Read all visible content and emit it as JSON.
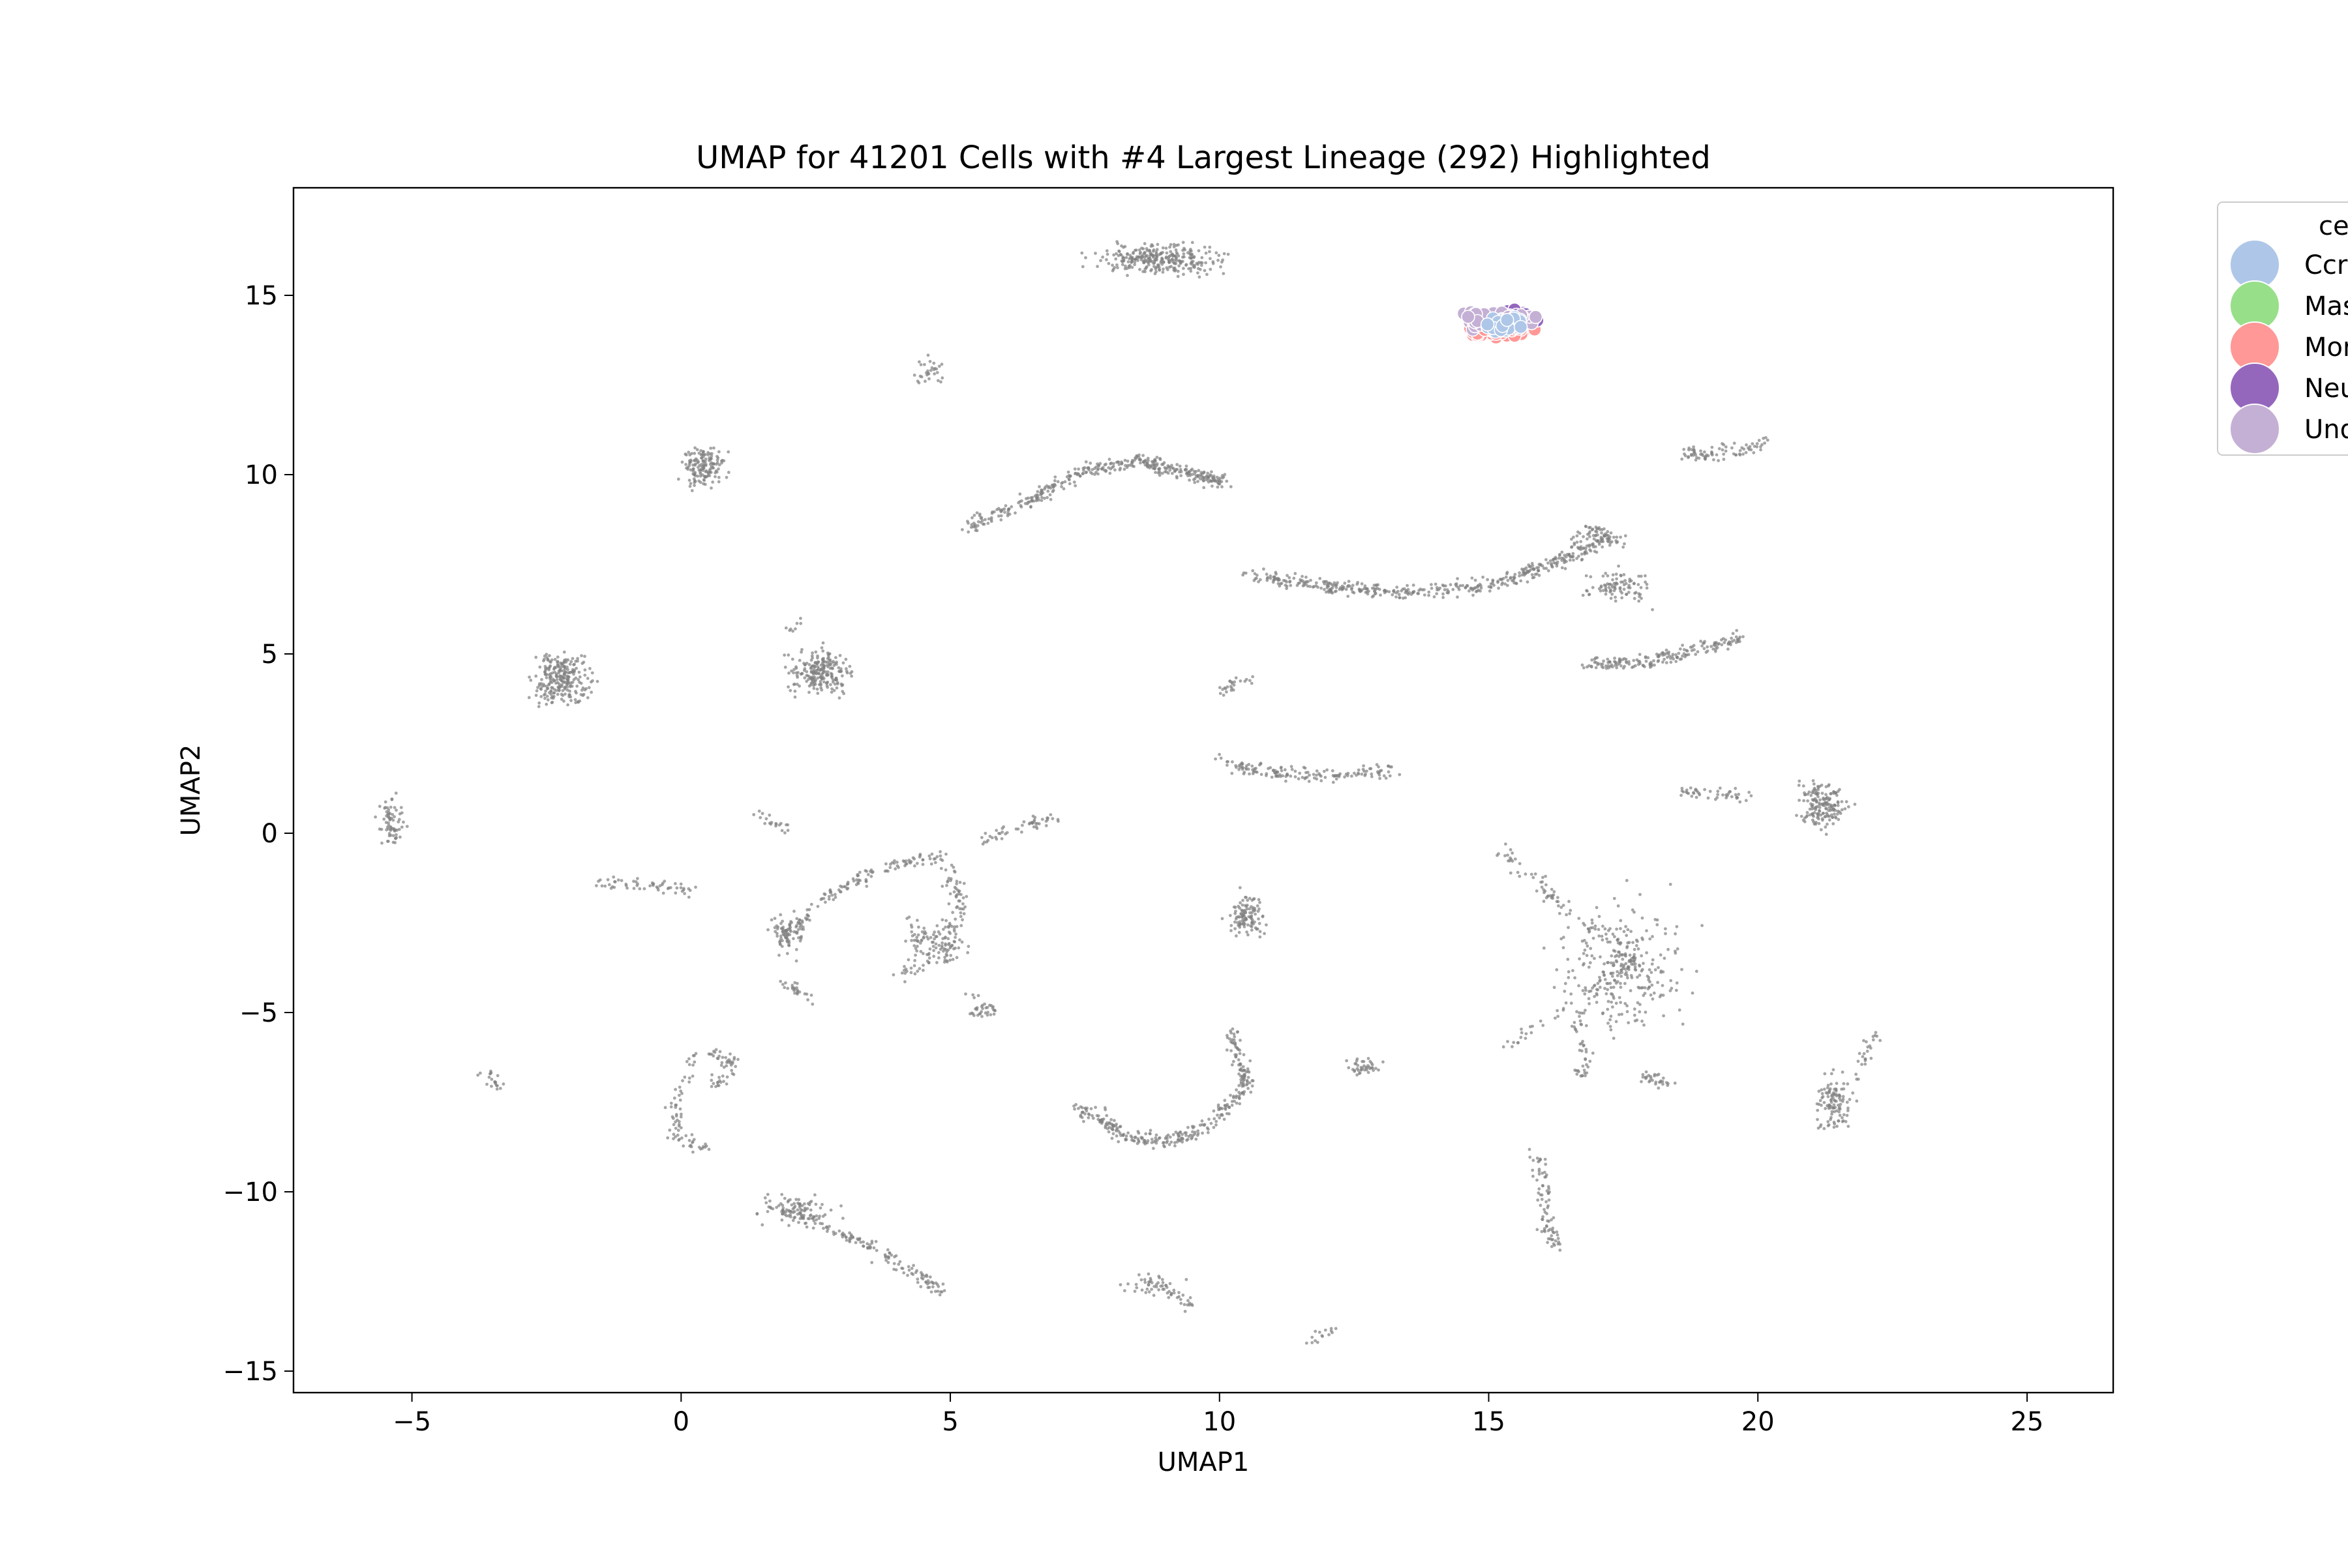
{
  "chart_data": {
    "type": "scatter",
    "title": "UMAP for 41201 Cells with #4 Largest Lineage (292) Highlighted",
    "xlabel": "UMAP1",
    "ylabel": "UMAP2",
    "xlim": [
      -7.2,
      26.6
    ],
    "ylim": [
      -15.6,
      18.0
    ],
    "xticks": [
      -5,
      0,
      5,
      10,
      15,
      20,
      25
    ],
    "yticks": [
      -15,
      -10,
      -5,
      0,
      5,
      10,
      15
    ],
    "xtick_labels": [
      "−5",
      "0",
      "5",
      "10",
      "15",
      "20",
      "25"
    ],
    "ytick_labels": [
      "−15",
      "−10",
      "−5",
      "0",
      "5",
      "10",
      "15"
    ],
    "grid": false,
    "legend": {
      "placement": "outside-top-right",
      "title": "ce",
      "entries": [
        {
          "label": "Ccr",
          "color": "#aec7e8"
        },
        {
          "label": "Mas",
          "color": "#98df8a"
        },
        {
          "label": "Mor",
          "color": "#ff9896"
        },
        {
          "label": "Neu",
          "color": "#9467bd"
        },
        {
          "label": "Und",
          "color": "#c5b0d5"
        }
      ]
    },
    "background_color": "#808080",
    "background_clusters": [
      {
        "shape": "blob",
        "cx": 8.9,
        "cy": 16.0,
        "rx": 1.0,
        "ry": 0.35,
        "n": 300
      },
      {
        "shape": "blob",
        "cx": 0.4,
        "cy": 10.2,
        "rx": 0.35,
        "ry": 0.5,
        "n": 150
      },
      {
        "shape": "blob",
        "cx": -2.2,
        "cy": 4.3,
        "rx": 0.45,
        "ry": 0.7,
        "n": 250
      },
      {
        "shape": "blob",
        "cx": 2.6,
        "cy": 4.5,
        "rx": 0.5,
        "ry": 0.5,
        "n": 220
      },
      {
        "shape": "blob",
        "cx": -5.4,
        "cy": 0.3,
        "rx": 0.2,
        "ry": 0.6,
        "n": 70
      },
      {
        "shape": "blob",
        "cx": 10.5,
        "cy": -2.3,
        "rx": 0.3,
        "ry": 0.5,
        "n": 110
      },
      {
        "shape": "blob",
        "cx": 21.2,
        "cy": 0.8,
        "rx": 0.4,
        "ry": 0.6,
        "n": 170
      },
      {
        "shape": "blob",
        "cx": 21.4,
        "cy": -7.5,
        "rx": 0.3,
        "ry": 0.7,
        "n": 110
      },
      {
        "shape": "blob",
        "cx": 12.7,
        "cy": -6.5,
        "rx": 0.3,
        "ry": 0.2,
        "n": 40
      },
      {
        "shape": "blob",
        "cx": 4.6,
        "cy": 12.9,
        "rx": 0.25,
        "ry": 0.35,
        "n": 30
      },
      {
        "shape": "blob",
        "cx": 17.4,
        "cy": 6.9,
        "rx": 0.5,
        "ry": 0.4,
        "n": 90
      },
      {
        "shape": "blob",
        "cx": 8.7,
        "cy": -12.6,
        "rx": 0.5,
        "ry": 0.25,
        "n": 40
      },
      {
        "shape": "blob",
        "cx": 2.1,
        "cy": -10.5,
        "rx": 0.55,
        "ry": 0.35,
        "n": 90
      },
      {
        "shape": "blob",
        "cx": 17.5,
        "cy": -3.7,
        "rx": 1.0,
        "ry": 1.6,
        "n": 260
      },
      {
        "shape": "blob",
        "cx": 4.7,
        "cy": -3.0,
        "rx": 0.5,
        "ry": 0.6,
        "n": 100
      },
      {
        "shape": "blob",
        "cx": 2.0,
        "cy": -2.8,
        "rx": 0.3,
        "ry": 0.5,
        "n": 60
      },
      {
        "shape": "path",
        "pts": [
          [
            5.3,
            8.5
          ],
          [
            6.5,
            9.3
          ],
          [
            7.5,
            10.1
          ],
          [
            8.5,
            10.4
          ],
          [
            9.5,
            10.0
          ],
          [
            10.1,
            9.8
          ]
        ],
        "n": 380
      },
      {
        "shape": "path",
        "pts": [
          [
            10.5,
            7.2
          ],
          [
            12.0,
            6.9
          ],
          [
            13.5,
            6.7
          ],
          [
            15.0,
            6.9
          ],
          [
            16.3,
            7.6
          ],
          [
            17.3,
            8.3
          ]
        ],
        "n": 450
      },
      {
        "shape": "path",
        "pts": [
          [
            15.6,
            14.2
          ],
          [
            17.5,
            14.5
          ],
          [
            18.5,
            10.5
          ],
          [
            20.1,
            10.8
          ]
        ],
        "n": 0
      },
      {
        "shape": "path",
        "pts": [
          [
            18.6,
            10.55
          ],
          [
            19.3,
            10.6
          ],
          [
            20.1,
            10.85
          ]
        ],
        "n": 80
      },
      {
        "shape": "path",
        "pts": [
          [
            16.8,
            4.7
          ],
          [
            18.0,
            4.8
          ],
          [
            19.0,
            5.2
          ],
          [
            19.7,
            5.4
          ]
        ],
        "n": 180
      },
      {
        "shape": "path",
        "pts": [
          [
            10.0,
            2.0
          ],
          [
            11.0,
            1.7
          ],
          [
            12.2,
            1.6
          ],
          [
            13.2,
            1.8
          ]
        ],
        "n": 150
      },
      {
        "shape": "path",
        "pts": [
          [
            10.0,
            4.0
          ],
          [
            10.6,
            4.3
          ]
        ],
        "n": 25
      },
      {
        "shape": "path",
        "pts": [
          [
            18.5,
            1.1
          ],
          [
            19.3,
            1.1
          ],
          [
            19.9,
            1.0
          ]
        ],
        "n": 45
      },
      {
        "shape": "path",
        "pts": [
          [
            1.4,
            0.5
          ],
          [
            1.9,
            0.1
          ]
        ],
        "n": 20
      },
      {
        "shape": "path",
        "pts": [
          [
            5.5,
            -0.2
          ],
          [
            6.4,
            0.2
          ],
          [
            7.0,
            0.5
          ]
        ],
        "n": 50
      },
      {
        "shape": "path",
        "pts": [
          [
            -1.5,
            -1.4
          ],
          [
            -0.6,
            -1.4
          ],
          [
            0.2,
            -1.6
          ]
        ],
        "n": 55
      },
      {
        "shape": "path",
        "pts": [
          [
            1.8,
            -3.0
          ],
          [
            2.7,
            -1.8
          ],
          [
            3.7,
            -1.0
          ],
          [
            4.9,
            -0.6
          ]
        ],
        "n": 140
      },
      {
        "shape": "path",
        "pts": [
          [
            4.9,
            -0.6
          ],
          [
            5.2,
            -2.0
          ],
          [
            4.9,
            -3.5
          ],
          [
            3.9,
            -4.0
          ]
        ],
        "n": 90
      },
      {
        "shape": "path",
        "pts": [
          [
            1.9,
            -4.2
          ],
          [
            2.4,
            -4.6
          ]
        ],
        "n": 25
      },
      {
        "shape": "path",
        "pts": [
          [
            5.4,
            -4.4
          ],
          [
            5.8,
            -4.9
          ],
          [
            5.4,
            -5.0
          ]
        ],
        "n": 35
      },
      {
        "shape": "path",
        "pts": [
          [
            -3.7,
            -6.6
          ],
          [
            -3.3,
            -7.1
          ]
        ],
        "n": 20
      },
      {
        "shape": "path",
        "pts": [
          [
            0.6,
            -7.0
          ],
          [
            1.0,
            -6.5
          ],
          [
            0.6,
            -6.1
          ]
        ],
        "n": 50
      },
      {
        "shape": "path",
        "pts": [
          [
            0.3,
            -6.2
          ],
          [
            -0.1,
            -7.4
          ],
          [
            -0.1,
            -8.4
          ],
          [
            0.4,
            -8.8
          ]
        ],
        "n": 70
      },
      {
        "shape": "path",
        "pts": [
          [
            7.4,
            -7.6
          ],
          [
            8.2,
            -8.4
          ],
          [
            9.0,
            -8.6
          ],
          [
            9.8,
            -8.2
          ],
          [
            10.5,
            -7.0
          ],
          [
            10.2,
            -5.5
          ]
        ],
        "n": 320
      },
      {
        "shape": "path",
        "pts": [
          [
            2.0,
            -10.5
          ],
          [
            3.5,
            -11.5
          ],
          [
            4.9,
            -12.8
          ]
        ],
        "n": 140
      },
      {
        "shape": "path",
        "pts": [
          [
            8.9,
            -12.6
          ],
          [
            9.5,
            -13.2
          ]
        ],
        "n": 25
      },
      {
        "shape": "path",
        "pts": [
          [
            11.8,
            -14.1
          ],
          [
            12.2,
            -13.8
          ]
        ],
        "n": 15
      },
      {
        "shape": "path",
        "pts": [
          [
            15.2,
            -6.0
          ],
          [
            17.2,
            -4.2
          ],
          [
            17.7,
            -3.5
          ],
          [
            16.3,
            -2.0
          ],
          [
            15.2,
            -0.3
          ]
        ],
        "n": 140
      },
      {
        "shape": "path",
        "pts": [
          [
            16.6,
            -5.0
          ],
          [
            16.8,
            -6.5
          ],
          [
            16.6,
            -6.8
          ]
        ],
        "n": 40
      },
      {
        "shape": "path",
        "pts": [
          [
            17.9,
            -6.8
          ],
          [
            18.3,
            -6.9
          ]
        ],
        "n": 30
      },
      {
        "shape": "path",
        "pts": [
          [
            18.2,
            5.3
          ],
          [
            17.0,
            7.3
          ]
        ],
        "n": 0
      },
      {
        "shape": "path",
        "pts": [
          [
            17.5,
            8.1
          ],
          [
            17.0,
            8.5
          ],
          [
            16.5,
            8.1
          ]
        ],
        "n": 50
      },
      {
        "shape": "path",
        "pts": [
          [
            17.0,
            5.6
          ],
          [
            17.9,
            -10.5
          ]
        ],
        "n": 0
      },
      {
        "shape": "path",
        "pts": [
          [
            15.9,
            -9.0
          ],
          [
            16.0,
            -10.0
          ],
          [
            16.1,
            -11.0
          ],
          [
            16.3,
            -11.5
          ]
        ],
        "n": 80
      },
      {
        "shape": "path",
        "pts": [
          [
            21.8,
            -6.8
          ],
          [
            22.1,
            -6.0
          ]
        ],
        "n": 15
      },
      {
        "shape": "path",
        "pts": [
          [
            22.0,
            -6.0
          ],
          [
            22.2,
            -5.6
          ]
        ],
        "n": 10
      },
      {
        "shape": "path",
        "pts": [
          [
            2.0,
            5.7
          ],
          [
            2.3,
            5.9
          ]
        ],
        "n": 8
      }
    ],
    "highlight_clusters": [
      {
        "category": "Mor",
        "cx": 15.2,
        "cy": 14.1,
        "rx": 0.6,
        "ry": 0.25,
        "n": 110
      },
      {
        "category": "Neu",
        "cx": 15.55,
        "cy": 14.4,
        "rx": 0.3,
        "ry": 0.2,
        "n": 40
      },
      {
        "category": "Und",
        "cx": 15.2,
        "cy": 14.3,
        "rx": 0.6,
        "ry": 0.25,
        "n": 70
      },
      {
        "category": "Ccr",
        "cx": 15.3,
        "cy": 14.2,
        "rx": 0.4,
        "ry": 0.2,
        "n": 25
      }
    ]
  }
}
